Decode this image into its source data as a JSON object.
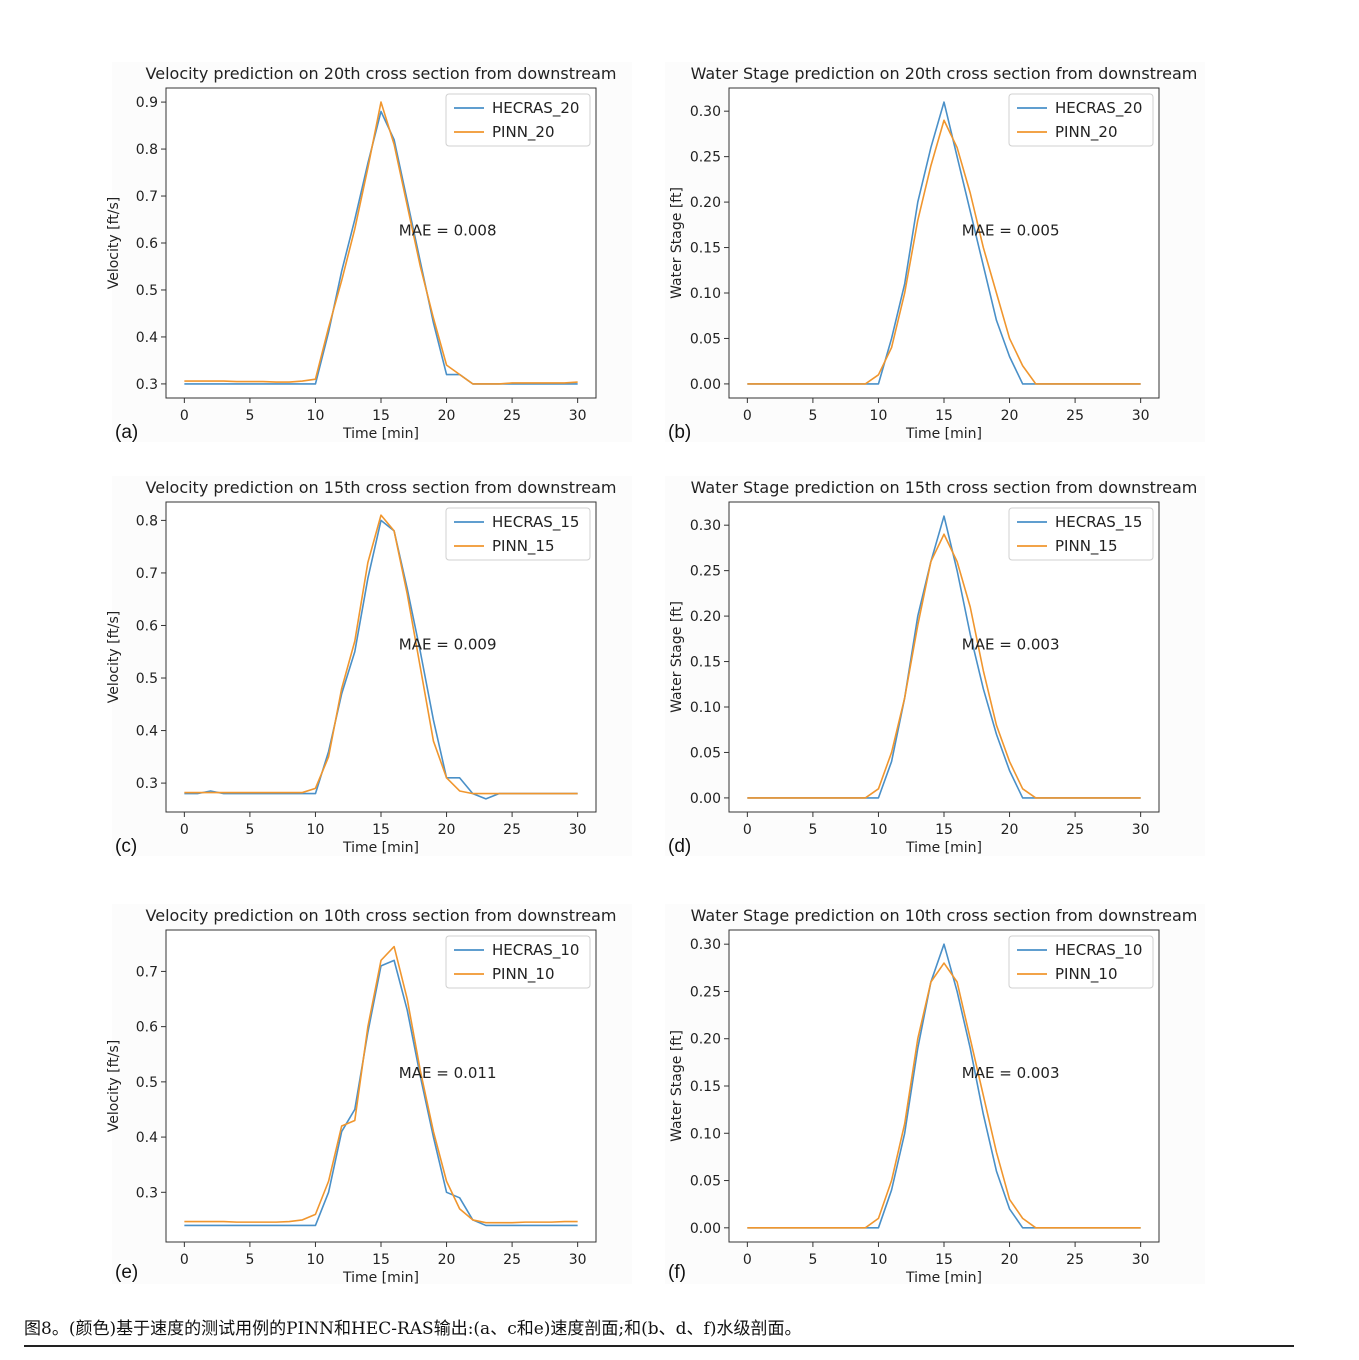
{
  "caption": "图8。(颜色)基于速度的测试用例的PINN和HEC-RAS输出:(a、c和e)速度剖面;和(b、d、f)水级剖面。",
  "colors": {
    "hecras": "#4a90c8",
    "pinn": "#f0962e"
  },
  "chart_data": [
    {
      "type": "line",
      "panel_label": "(a)",
      "title": "Velocity prediction on 20th cross section from downstream",
      "xlabel": "Time [min]",
      "ylabel": "Velocity [ft/s]",
      "xlim": [
        -1.4,
        31.4
      ],
      "ylim": [
        0.27,
        0.93
      ],
      "xticks": [
        0,
        5,
        10,
        15,
        20,
        25,
        30
      ],
      "yticks": [
        0.3,
        0.4,
        0.5,
        0.6,
        0.7,
        0.8,
        0.9
      ],
      "annotation": "MAE = 0.008",
      "legend_position": "top-right",
      "series": [
        {
          "name": "HECRAS_20",
          "color": "#4a90c8",
          "x": [
            0,
            1,
            2,
            3,
            4,
            5,
            6,
            7,
            8,
            9,
            10,
            11,
            12,
            13,
            14,
            15,
            16,
            17,
            18,
            19,
            20,
            21,
            22,
            23,
            24,
            25,
            26,
            27,
            28,
            29,
            30
          ],
          "y": [
            0.3,
            0.3,
            0.3,
            0.3,
            0.3,
            0.3,
            0.3,
            0.3,
            0.3,
            0.3,
            0.3,
            0.41,
            0.54,
            0.65,
            0.77,
            0.88,
            0.82,
            0.69,
            0.56,
            0.43,
            0.32,
            0.32,
            0.3,
            0.3,
            0.3,
            0.3,
            0.3,
            0.3,
            0.3,
            0.3,
            0.3
          ]
        },
        {
          "name": "PINN_20",
          "color": "#f0962e",
          "x": [
            0,
            1,
            2,
            3,
            4,
            5,
            6,
            7,
            8,
            9,
            10,
            11,
            12,
            13,
            14,
            15,
            16,
            17,
            18,
            19,
            20,
            21,
            22,
            23,
            24,
            25,
            26,
            27,
            28,
            29,
            30
          ],
          "y": [
            0.306,
            0.306,
            0.306,
            0.306,
            0.305,
            0.305,
            0.305,
            0.304,
            0.304,
            0.306,
            0.31,
            0.42,
            0.52,
            0.63,
            0.76,
            0.9,
            0.81,
            0.68,
            0.55,
            0.44,
            0.34,
            0.32,
            0.3,
            0.3,
            0.3,
            0.302,
            0.302,
            0.302,
            0.302,
            0.302,
            0.304
          ]
        }
      ]
    },
    {
      "type": "line",
      "panel_label": "(b)",
      "title": "Water Stage prediction on 20th cross section from downstream",
      "xlabel": "Time [min]",
      "ylabel": "Water Stage [ft]",
      "xlim": [
        -1.4,
        31.4
      ],
      "ylim": [
        -0.0155,
        0.3255
      ],
      "xticks": [
        0,
        5,
        10,
        15,
        20,
        25,
        30
      ],
      "yticks": [
        0.0,
        0.05,
        0.1,
        0.15,
        0.2,
        0.25,
        0.3
      ],
      "annotation": "MAE = 0.005",
      "legend_position": "top-right",
      "series": [
        {
          "name": "HECRAS_20",
          "color": "#4a90c8",
          "x": [
            0,
            1,
            2,
            3,
            4,
            5,
            6,
            7,
            8,
            9,
            10,
            11,
            12,
            13,
            14,
            15,
            16,
            17,
            18,
            19,
            20,
            21,
            22,
            23,
            24,
            25,
            26,
            27,
            28,
            29,
            30
          ],
          "y": [
            0,
            0,
            0,
            0,
            0,
            0,
            0,
            0,
            0,
            0,
            0,
            0.05,
            0.11,
            0.2,
            0.26,
            0.31,
            0.25,
            0.19,
            0.13,
            0.07,
            0.03,
            0,
            0,
            0,
            0,
            0,
            0,
            0,
            0,
            0,
            0
          ]
        },
        {
          "name": "PINN_20",
          "color": "#f0962e",
          "x": [
            0,
            1,
            2,
            3,
            4,
            5,
            6,
            7,
            8,
            9,
            10,
            11,
            12,
            13,
            14,
            15,
            16,
            17,
            18,
            19,
            20,
            21,
            22,
            23,
            24,
            25,
            26,
            27,
            28,
            29,
            30
          ],
          "y": [
            0,
            0,
            0,
            0,
            0,
            0,
            0,
            0,
            0,
            0,
            0.01,
            0.04,
            0.1,
            0.18,
            0.24,
            0.29,
            0.26,
            0.21,
            0.15,
            0.1,
            0.05,
            0.02,
            0,
            0,
            0,
            0,
            0,
            0,
            0,
            0,
            0
          ]
        }
      ]
    },
    {
      "type": "line",
      "panel_label": "(c)",
      "title": "Velocity prediction on 15th cross section from downstream",
      "xlabel": "Time [min]",
      "ylabel": "Velocity [ft/s]",
      "xlim": [
        -1.4,
        31.4
      ],
      "ylim": [
        0.245,
        0.835
      ],
      "xticks": [
        0,
        5,
        10,
        15,
        20,
        25,
        30
      ],
      "yticks": [
        0.3,
        0.4,
        0.5,
        0.6,
        0.7,
        0.8
      ],
      "annotation": "MAE = 0.009",
      "legend_position": "top-right",
      "series": [
        {
          "name": "HECRAS_15",
          "color": "#4a90c8",
          "x": [
            0,
            1,
            2,
            3,
            4,
            5,
            6,
            7,
            8,
            9,
            10,
            11,
            12,
            13,
            14,
            15,
            16,
            17,
            18,
            19,
            20,
            21,
            22,
            23,
            24,
            25,
            26,
            27,
            28,
            29,
            30
          ],
          "y": [
            0.28,
            0.28,
            0.285,
            0.28,
            0.28,
            0.28,
            0.28,
            0.28,
            0.28,
            0.28,
            0.28,
            0.36,
            0.47,
            0.55,
            0.69,
            0.8,
            0.78,
            0.67,
            0.55,
            0.42,
            0.31,
            0.31,
            0.28,
            0.27,
            0.28,
            0.28,
            0.28,
            0.28,
            0.28,
            0.28,
            0.28
          ]
        },
        {
          "name": "PINN_15",
          "color": "#f0962e",
          "x": [
            0,
            1,
            2,
            3,
            4,
            5,
            6,
            7,
            8,
            9,
            10,
            11,
            12,
            13,
            14,
            15,
            16,
            17,
            18,
            19,
            20,
            21,
            22,
            23,
            24,
            25,
            26,
            27,
            28,
            29,
            30
          ],
          "y": [
            0.282,
            0.282,
            0.282,
            0.282,
            0.282,
            0.282,
            0.282,
            0.282,
            0.282,
            0.282,
            0.29,
            0.35,
            0.48,
            0.57,
            0.72,
            0.81,
            0.78,
            0.66,
            0.52,
            0.38,
            0.31,
            0.285,
            0.28,
            0.28,
            0.28,
            0.28,
            0.28,
            0.28,
            0.28,
            0.28,
            0.28
          ]
        }
      ]
    },
    {
      "type": "line",
      "panel_label": "(d)",
      "title": "Water Stage prediction on 15th cross section from downstream",
      "xlabel": "Time [min]",
      "ylabel": "Water Stage [ft]",
      "xlim": [
        -1.4,
        31.4
      ],
      "ylim": [
        -0.0155,
        0.3255
      ],
      "xticks": [
        0,
        5,
        10,
        15,
        20,
        25,
        30
      ],
      "yticks": [
        0.0,
        0.05,
        0.1,
        0.15,
        0.2,
        0.25,
        0.3
      ],
      "annotation": "MAE = 0.003",
      "legend_position": "top-right",
      "series": [
        {
          "name": "HECRAS_15",
          "color": "#4a90c8",
          "x": [
            0,
            1,
            2,
            3,
            4,
            5,
            6,
            7,
            8,
            9,
            10,
            11,
            12,
            13,
            14,
            15,
            16,
            17,
            18,
            19,
            20,
            21,
            22,
            23,
            24,
            25,
            26,
            27,
            28,
            29,
            30
          ],
          "y": [
            0,
            0,
            0,
            0,
            0,
            0,
            0,
            0,
            0,
            0,
            0,
            0.04,
            0.11,
            0.2,
            0.26,
            0.31,
            0.25,
            0.18,
            0.12,
            0.07,
            0.03,
            0,
            0,
            0,
            0,
            0,
            0,
            0,
            0,
            0,
            0
          ]
        },
        {
          "name": "PINN_15",
          "color": "#f0962e",
          "x": [
            0,
            1,
            2,
            3,
            4,
            5,
            6,
            7,
            8,
            9,
            10,
            11,
            12,
            13,
            14,
            15,
            16,
            17,
            18,
            19,
            20,
            21,
            22,
            23,
            24,
            25,
            26,
            27,
            28,
            29,
            30
          ],
          "y": [
            0,
            0,
            0,
            0,
            0,
            0,
            0,
            0,
            0,
            0,
            0.01,
            0.05,
            0.11,
            0.19,
            0.26,
            0.29,
            0.26,
            0.21,
            0.14,
            0.08,
            0.04,
            0.01,
            0,
            0,
            0,
            0,
            0,
            0,
            0,
            0,
            0
          ]
        }
      ]
    },
    {
      "type": "line",
      "panel_label": "(e)",
      "title": "Velocity prediction on 10th cross section from downstream",
      "xlabel": "Time [min]",
      "ylabel": "Velocity [ft/s]",
      "xlim": [
        -1.4,
        31.4
      ],
      "ylim": [
        0.21,
        0.775
      ],
      "xticks": [
        0,
        5,
        10,
        15,
        20,
        25,
        30
      ],
      "yticks": [
        0.3,
        0.4,
        0.5,
        0.6,
        0.7
      ],
      "annotation": "MAE = 0.011",
      "legend_position": "top-right",
      "series": [
        {
          "name": "HECRAS_10",
          "color": "#4a90c8",
          "x": [
            0,
            1,
            2,
            3,
            4,
            5,
            6,
            7,
            8,
            9,
            10,
            11,
            12,
            13,
            14,
            15,
            16,
            17,
            18,
            19,
            20,
            21,
            22,
            23,
            24,
            25,
            26,
            27,
            28,
            29,
            30
          ],
          "y": [
            0.24,
            0.24,
            0.24,
            0.24,
            0.24,
            0.24,
            0.24,
            0.24,
            0.24,
            0.24,
            0.24,
            0.3,
            0.41,
            0.45,
            0.59,
            0.71,
            0.72,
            0.63,
            0.51,
            0.4,
            0.3,
            0.29,
            0.25,
            0.24,
            0.24,
            0.24,
            0.24,
            0.24,
            0.24,
            0.24,
            0.24
          ]
        },
        {
          "name": "PINN_10",
          "color": "#f0962e",
          "x": [
            0,
            1,
            2,
            3,
            4,
            5,
            6,
            7,
            8,
            9,
            10,
            11,
            12,
            13,
            14,
            15,
            16,
            17,
            18,
            19,
            20,
            21,
            22,
            23,
            24,
            25,
            26,
            27,
            28,
            29,
            30
          ],
          "y": [
            0.247,
            0.247,
            0.247,
            0.247,
            0.246,
            0.246,
            0.246,
            0.246,
            0.247,
            0.25,
            0.26,
            0.32,
            0.42,
            0.43,
            0.6,
            0.72,
            0.745,
            0.65,
            0.52,
            0.41,
            0.32,
            0.27,
            0.25,
            0.245,
            0.245,
            0.245,
            0.246,
            0.246,
            0.246,
            0.247,
            0.247
          ]
        }
      ]
    },
    {
      "type": "line",
      "panel_label": "(f)",
      "title": "Water Stage prediction on 10th cross section from downstream",
      "xlabel": "Time [min]",
      "ylabel": "Water Stage [ft]",
      "xlim": [
        -1.4,
        31.4
      ],
      "ylim": [
        -0.015,
        0.315
      ],
      "xticks": [
        0,
        5,
        10,
        15,
        20,
        25,
        30
      ],
      "yticks": [
        0.0,
        0.05,
        0.1,
        0.15,
        0.2,
        0.25,
        0.3
      ],
      "annotation": "MAE = 0.003",
      "legend_position": "top-right",
      "series": [
        {
          "name": "HECRAS_10",
          "color": "#4a90c8",
          "x": [
            0,
            1,
            2,
            3,
            4,
            5,
            6,
            7,
            8,
            9,
            10,
            11,
            12,
            13,
            14,
            15,
            16,
            17,
            18,
            19,
            20,
            21,
            22,
            23,
            24,
            25,
            26,
            27,
            28,
            29,
            30
          ],
          "y": [
            0,
            0,
            0,
            0,
            0,
            0,
            0,
            0,
            0,
            0,
            0,
            0.04,
            0.1,
            0.19,
            0.26,
            0.3,
            0.25,
            0.19,
            0.12,
            0.06,
            0.02,
            0,
            0,
            0,
            0,
            0,
            0,
            0,
            0,
            0,
            0
          ]
        },
        {
          "name": "PINN_10",
          "color": "#f0962e",
          "x": [
            0,
            1,
            2,
            3,
            4,
            5,
            6,
            7,
            8,
            9,
            10,
            11,
            12,
            13,
            14,
            15,
            16,
            17,
            18,
            19,
            20,
            21,
            22,
            23,
            24,
            25,
            26,
            27,
            28,
            29,
            30
          ],
          "y": [
            0,
            0,
            0,
            0,
            0,
            0,
            0,
            0,
            0,
            0,
            0.01,
            0.05,
            0.11,
            0.2,
            0.26,
            0.28,
            0.26,
            0.2,
            0.14,
            0.08,
            0.03,
            0.01,
            0,
            0,
            0,
            0,
            0,
            0,
            0,
            0,
            0
          ]
        }
      ]
    }
  ]
}
